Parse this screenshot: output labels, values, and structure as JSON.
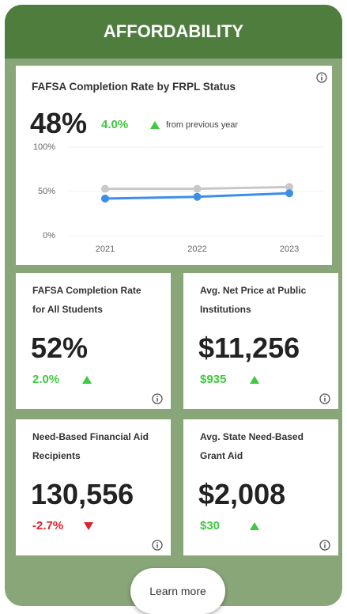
{
  "header": {
    "title": "AFFORDABILITY"
  },
  "main_card": {
    "title": "FAFSA Completion Rate by FRPL Status",
    "value": "48%",
    "change": "4.0%",
    "change_note": "from previous year",
    "chart_data": {
      "type": "line",
      "categories": [
        "2021",
        "2022",
        "2023"
      ],
      "series": [
        {
          "color": "#c8c8c8",
          "values": [
            53,
            53,
            55
          ]
        },
        {
          "color": "#3d8ee8",
          "values": [
            42,
            44,
            48
          ]
        }
      ],
      "ylim": [
        0,
        100
      ],
      "yticks": [
        {
          "value": 0,
          "label": "0%"
        },
        {
          "value": 50,
          "label": "50%"
        },
        {
          "value": 100,
          "label": "100%"
        }
      ],
      "grid": true
    }
  },
  "cards": [
    {
      "title": "FAFSA Completion Rate for All Students",
      "value": "52%",
      "change": "2.0%"
    },
    {
      "title": "Avg. Net Price at Public Institutions",
      "value": "$11,256",
      "change": "$935"
    },
    {
      "title": "Need-Based Financial Aid Recipients",
      "value": "130,556",
      "change": "-2.7%"
    },
    {
      "title": "Avg. State Need-Based Grant Aid",
      "value": "$2,008",
      "change": "$30"
    }
  ],
  "button": {
    "label": "Learn more"
  }
}
